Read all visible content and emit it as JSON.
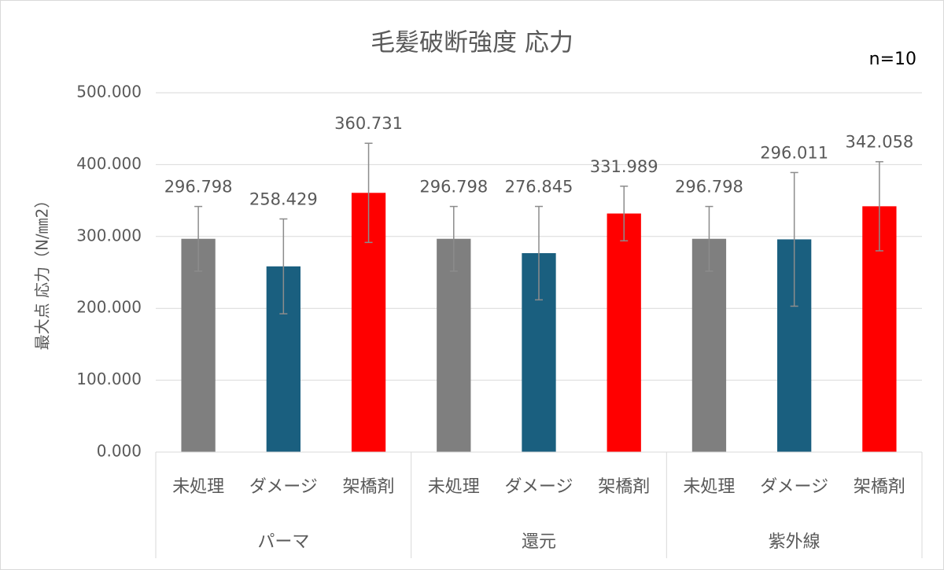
{
  "chart_data": {
    "type": "bar",
    "title": "毛髪破断強度 応力",
    "annotation": "n=10",
    "ylabel": "最大点 応力（N/㎜2）",
    "colors": [
      "#7f7f7f",
      "#1a5f7f",
      "#ff0000"
    ],
    "groups": [
      {
        "name": "パーマ",
        "categories": [
          "未処理",
          "ダメージ",
          "架橋剤"
        ],
        "values": [
          296.798,
          258.429,
          360.731
        ],
        "errors": [
          45,
          66,
          69
        ]
      },
      {
        "name": "還元",
        "categories": [
          "未処理",
          "ダメージ",
          "架橋剤"
        ],
        "values": [
          296.798,
          276.845,
          331.989
        ],
        "errors": [
          45,
          65,
          38
        ]
      },
      {
        "name": "紫外線",
        "categories": [
          "未処理",
          "ダメージ",
          "架橋剤"
        ],
        "values": [
          296.798,
          296.011,
          342.058
        ],
        "errors": [
          45,
          93,
          62
        ]
      }
    ],
    "ylim": [
      0,
      500
    ],
    "yticks": [
      {
        "value": 0,
        "label": "0.000"
      },
      {
        "value": 100,
        "label": "100.000"
      },
      {
        "value": 200,
        "label": "200.000"
      },
      {
        "value": 300,
        "label": "300.000"
      },
      {
        "value": 400,
        "label": "400.000"
      },
      {
        "value": 500,
        "label": "500.000"
      }
    ],
    "grid": true
  }
}
